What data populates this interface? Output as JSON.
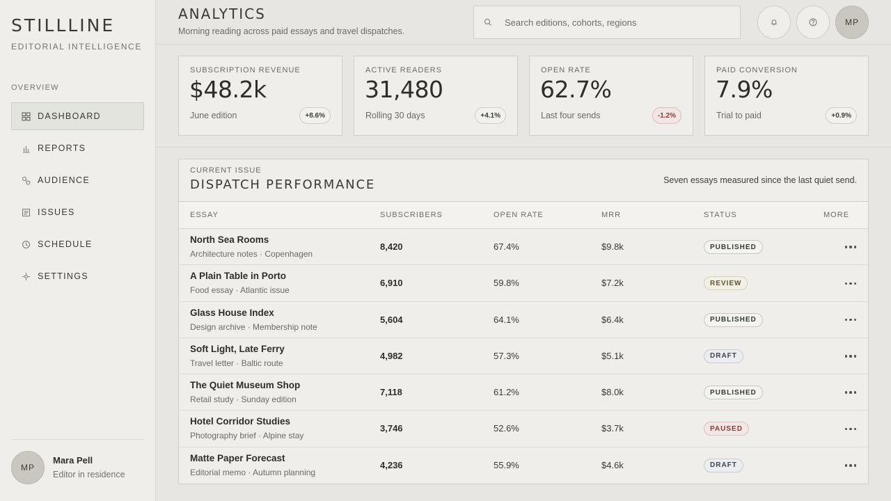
{
  "brand": {
    "name": "STILLLINE",
    "tagline": "EDITORIAL INTELLIGENCE"
  },
  "nav": {
    "section": "OVERVIEW",
    "items": [
      {
        "label": "DASHBOARD",
        "icon": "grid-icon",
        "active": true
      },
      {
        "label": "REPORTS",
        "icon": "bar-chart-icon"
      },
      {
        "label": "AUDIENCE",
        "icon": "link-icon"
      },
      {
        "label": "ISSUES",
        "icon": "document-icon"
      },
      {
        "label": "SCHEDULE",
        "icon": "clock-icon"
      },
      {
        "label": "SETTINGS",
        "icon": "gear-icon"
      }
    ]
  },
  "user": {
    "initials": "MP",
    "name": "Mara Pell",
    "role": "Editor in residence"
  },
  "header": {
    "title": "ANALYTICS",
    "subtitle": "Morning reading across paid essays and travel dispatches.",
    "search_placeholder": "Search editions, cohorts, regions",
    "search_value": "",
    "avatar_initials": "MP"
  },
  "kpis": [
    {
      "label": "SUBSCRIPTION REVENUE",
      "value": "$48.2k",
      "note": "June edition",
      "delta": "+8.6%",
      "trend": "up"
    },
    {
      "label": "ACTIVE READERS",
      "value": "31,480",
      "note": "Rolling 30 days",
      "delta": "+4.1%",
      "trend": "up"
    },
    {
      "label": "OPEN RATE",
      "value": "62.7%",
      "note": "Last four sends",
      "delta": "-1.2%",
      "trend": "down"
    },
    {
      "label": "PAID CONVERSION",
      "value": "7.9%",
      "note": "Trial to paid",
      "delta": "+0.9%",
      "trend": "up"
    }
  ],
  "panel": {
    "eyebrow": "CURRENT ISSUE",
    "title": "DISPATCH PERFORMANCE",
    "note": "Seven essays measured since the last quiet send.",
    "columns": [
      "ESSAY",
      "SUBSCRIBERS",
      "OPEN RATE",
      "MRR",
      "STATUS",
      "MORE"
    ],
    "rows": [
      {
        "title": "North Sea Rooms",
        "meta": "Architecture notes · Copenhagen",
        "subscribers": "8,420",
        "open_rate": "67.4%",
        "mrr": "$9.8k",
        "status": "PUBLISHED"
      },
      {
        "title": "A Plain Table in Porto",
        "meta": "Food essay · Atlantic issue",
        "subscribers": "6,910",
        "open_rate": "59.8%",
        "mrr": "$7.2k",
        "status": "REVIEW"
      },
      {
        "title": "Glass House Index",
        "meta": "Design archive · Membership note",
        "subscribers": "5,604",
        "open_rate": "64.1%",
        "mrr": "$6.4k",
        "status": "PUBLISHED"
      },
      {
        "title": "Soft Light, Late Ferry",
        "meta": "Travel letter · Baltic route",
        "subscribers": "4,982",
        "open_rate": "57.3%",
        "mrr": "$5.1k",
        "status": "DRAFT"
      },
      {
        "title": "The Quiet Museum Shop",
        "meta": "Retail study · Sunday edition",
        "subscribers": "7,118",
        "open_rate": "61.2%",
        "mrr": "$8.0k",
        "status": "PUBLISHED"
      },
      {
        "title": "Hotel Corridor Studies",
        "meta": "Photography brief · Alpine stay",
        "subscribers": "3,746",
        "open_rate": "52.6%",
        "mrr": "$3.7k",
        "status": "PAUSED"
      },
      {
        "title": "Matte Paper Forecast",
        "meta": "Editorial memo · Autumn planning",
        "subscribers": "4,236",
        "open_rate": "55.9%",
        "mrr": "$4.6k",
        "status": "DRAFT"
      }
    ]
  }
}
